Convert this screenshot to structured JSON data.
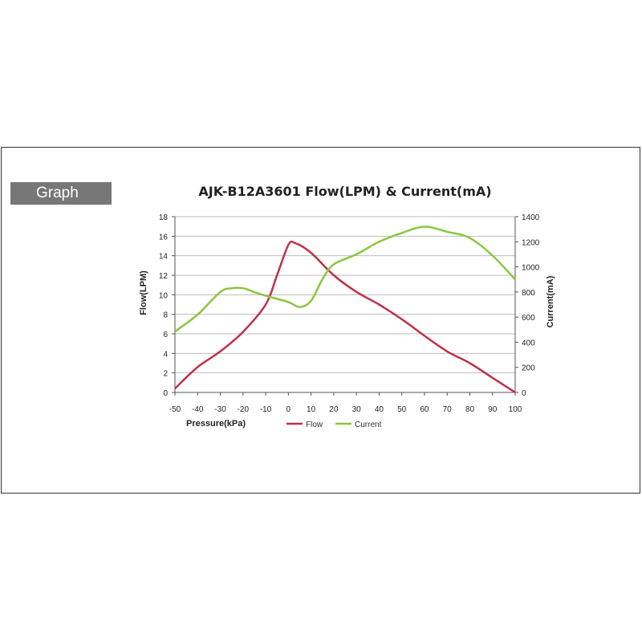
{
  "section_label": "Graph",
  "chart_data": {
    "type": "line",
    "title": "AJK-B12A3601 Flow(LPM) & Current(mA)",
    "xlabel": "Pressure(kPa)",
    "ylabel_left": "Flow(LPM)",
    "ylabel_right": "Current(mA)",
    "x_ticks": [
      "-50",
      "-40",
      "-30",
      "-20",
      "-10",
      "0",
      "10",
      "20",
      "30",
      "40",
      "50",
      "60",
      "70",
      "80",
      "90",
      "100"
    ],
    "xlim": [
      -50,
      100
    ],
    "y_left_ticks": [
      "0",
      "2",
      "4",
      "6",
      "8",
      "10",
      "12",
      "14",
      "16",
      "18"
    ],
    "y_left_lim": [
      0,
      18
    ],
    "y_right_ticks": [
      "0",
      "200",
      "400",
      "600",
      "800",
      "1000",
      "1200",
      "1400"
    ],
    "y_right_lim": [
      0,
      1400
    ],
    "grid": true,
    "legend_position": "bottom",
    "series": [
      {
        "name": "Flow",
        "axis": "left",
        "color": "#c0304a",
        "x": [
          -50,
          -40,
          -30,
          -20,
          -10,
          -5,
          0,
          3,
          10,
          20,
          30,
          40,
          50,
          60,
          70,
          80,
          90,
          100
        ],
        "y": [
          0.4,
          2.6,
          4.2,
          6.2,
          9.0,
          12.0,
          15.1,
          15.3,
          14.3,
          12.0,
          10.3,
          9.0,
          7.5,
          5.8,
          4.2,
          3.0,
          1.5,
          0.0
        ]
      },
      {
        "name": "Current",
        "axis": "right",
        "color": "#8cc63f",
        "x": [
          -50,
          -40,
          -30,
          -25,
          -20,
          -15,
          -10,
          0,
          5,
          10,
          15,
          20,
          30,
          40,
          50,
          60,
          70,
          80,
          90,
          100
        ],
        "y": [
          485,
          620,
          800,
          830,
          830,
          800,
          770,
          720,
          680,
          730,
          900,
          1020,
          1100,
          1200,
          1270,
          1320,
          1280,
          1230,
          1090,
          900
        ]
      }
    ]
  }
}
